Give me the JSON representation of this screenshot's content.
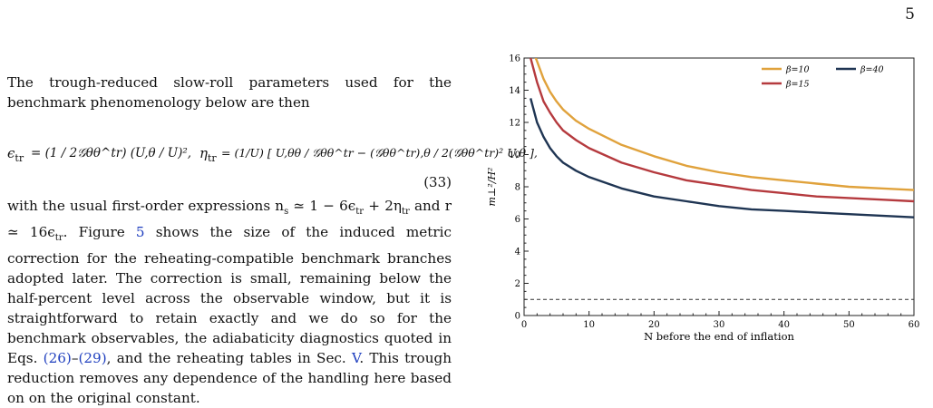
{
  "page_number": "5",
  "paragraph_1": "The trough-reduced slow-roll parameters used for the benchmark phenomenology below are then",
  "equation": {
    "eps_lhs": "ϵ",
    "eps_rhs": "= (1 / 2𝒢θθ^tr) (U,θ / U)²,",
    "eta_lhs": "η",
    "eta_rhs": "= (1/U) [ U,θθ / 𝒢θθ^tr − (𝒢θθ^tr),θ / 2(𝒢θθ^tr)² U,θ ],",
    "number": "(33)"
  },
  "paragraph_2": {
    "t1": "with the usual first-order expressions n",
    "t2": " ≃ 1 − 6ϵ",
    "t3": " + 2η",
    "t4": " and r ≃ 16ϵ",
    "t5": ". Figure ",
    "ref_fig": "5",
    "t6": " shows the size of the induced metric correction for the reheating-compatible benchmark branches adopted later. The correction is small, remaining below the half-percent level across the observable window, but it is straightforward to retain exactly and we do so for the benchmark observables, the adiabaticity diagnostics quoted in Eqs. ",
    "ref_eq_a": "(26)",
    "t7": "–",
    "ref_eq_b": "(29)",
    "t8": ", and the reheating tables in Sec. ",
    "ref_sec": "V",
    "t9": ". This trough reduction removes any dependence of the handling here based on on the original constant."
  },
  "chart_data": {
    "type": "line",
    "title": "",
    "xlabel": "N before the end of inflation",
    "ylabel": "m⊥²/H²",
    "xlim": [
      0,
      60
    ],
    "ylim": [
      0,
      16
    ],
    "xticks": [
      0,
      10,
      20,
      30,
      40,
      50,
      60
    ],
    "yticks": [
      0,
      2,
      4,
      6,
      8,
      10,
      12,
      14,
      16
    ],
    "x": [
      1,
      2,
      3,
      4,
      5,
      6,
      8,
      10,
      15,
      20,
      25,
      30,
      35,
      40,
      45,
      50,
      55,
      60
    ],
    "series": [
      {
        "name": "β=10",
        "color": "#e0a23c",
        "values": [
          16.8,
          15.8,
          14.7,
          13.9,
          13.3,
          12.8,
          12.1,
          11.6,
          10.6,
          9.9,
          9.3,
          8.9,
          8.6,
          8.4,
          8.2,
          8.0,
          7.9,
          7.8
        ]
      },
      {
        "name": "β=15",
        "color": "#b53a3e",
        "values": [
          16.0,
          14.5,
          13.3,
          12.6,
          12.0,
          11.5,
          10.9,
          10.4,
          9.5,
          8.9,
          8.4,
          8.1,
          7.8,
          7.6,
          7.4,
          7.3,
          7.2,
          7.1
        ]
      },
      {
        "name": "β=40",
        "color": "#1f3553",
        "values": [
          13.5,
          12.0,
          11.1,
          10.4,
          9.9,
          9.5,
          9.0,
          8.6,
          7.9,
          7.4,
          7.1,
          6.8,
          6.6,
          6.5,
          6.4,
          6.3,
          6.2,
          6.1
        ]
      }
    ],
    "reference_line": {
      "y": 1.0,
      "style": "dashed",
      "color": "#333333"
    },
    "legend_position": "top-right",
    "grid": false
  }
}
